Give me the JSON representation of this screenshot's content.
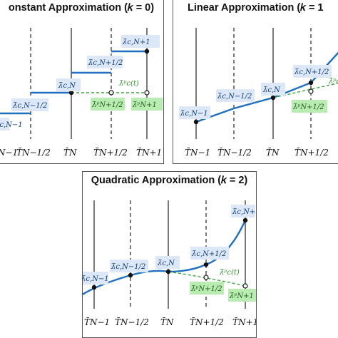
{
  "panels": {
    "constant": {
      "title": "onstant Approximation (𝑘 = 0)"
    },
    "linear": {
      "title": "Linear Approximation (𝑘 = 1"
    },
    "quadratic": {
      "title": "Quadratic Approximation (𝑘 = 2)"
    }
  },
  "labels": {
    "lambda_n_minus_1": "λ̄c,N−1",
    "lambda_n_minus_half": "λ̄c,N−1/2",
    "lambda_n": "λ̄c,N",
    "lambda_n_plus_half": "λ̄c,N+1/2",
    "lambda_n_plus_1": "λ̄c,N+1",
    "predicted_curve": "λ̄ᵖc(t)",
    "pred_n_plus_half": "λ̄ᵖN+1/2",
    "pred_n_plus_1": "λ̄ᵖN+1"
  },
  "ticks": {
    "t_n_minus_1": "T̄N−1",
    "t_n_minus_half": "T̄N−1/2",
    "t_n": "T̄N",
    "t_n_plus_half": "T̄N+1/2",
    "t_n_plus_1": "T̄N+1"
  },
  "colors": {
    "curve": "#1f6fbf",
    "predicted": "#3aa33a",
    "label_box": "#dce8f7",
    "pred_box": "#b9ecb0"
  }
}
